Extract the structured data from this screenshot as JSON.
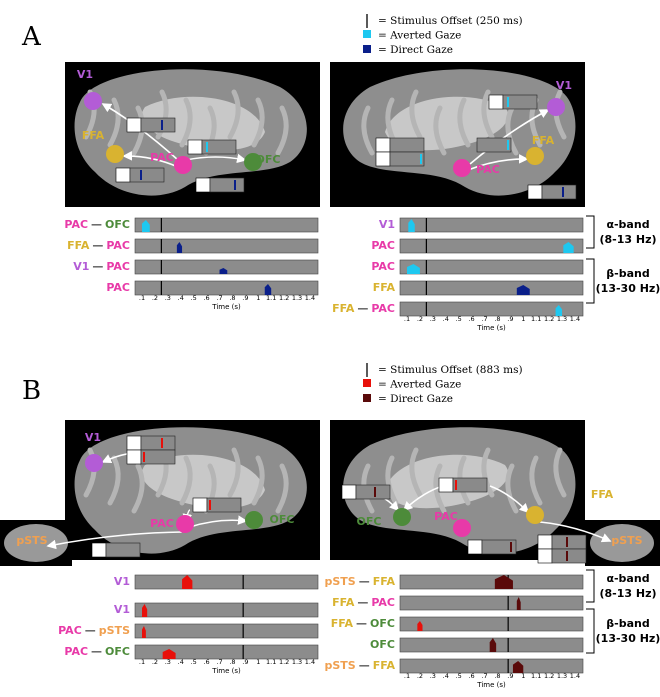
{
  "panels": [
    {
      "label": "A",
      "legend": [
        "= Stimulus Offset (250 ms)",
        "= Averted Gaze",
        "= Direct Gaze"
      ],
      "brains": [
        {
          "regions": [
            "V1",
            "FFA",
            "PAC",
            "OFC"
          ],
          "insets": [
            "β",
            "α",
            "α",
            "β"
          ]
        },
        {
          "regions": [
            "V1",
            "PAC",
            "FFA"
          ],
          "insets": [
            "α",
            "β",
            "α",
            "β"
          ]
        }
      ],
      "rows": [
        [
          [
            "PAC",
            "—",
            "OFC"
          ],
          [
            "FFA",
            "—",
            "PAC"
          ],
          [
            "V1",
            "—",
            "PAC"
          ],
          [
            "PAC"
          ]
        ],
        [
          [
            "V1"
          ],
          [
            "PAC"
          ],
          [
            "PAC"
          ],
          [
            "FFA"
          ],
          [
            "FFA",
            "—",
            "PAC"
          ]
        ]
      ],
      "ticks": [
        ".1",
        ".2",
        ".3",
        ".4",
        ".5",
        ".6",
        ".7",
        ".8",
        ".9",
        "1",
        "1.1",
        "1.2",
        "1.3",
        "1.4"
      ],
      "time_label": "Time (s)",
      "bands": [
        [
          "α-band",
          "(8-13 Hz)"
        ],
        [
          "β-band",
          "(13-30 Hz)"
        ]
      ]
    },
    {
      "label": "B",
      "legend": [
        "= Stimulus Offset (883 ms)",
        "= Averted Gaze",
        "= Direct Gaze"
      ],
      "brains": [
        {
          "regions": [
            "V1",
            "PAC",
            "OFC",
            "pSTS"
          ],
          "insets": [
            "α",
            "β",
            "β",
            "β"
          ]
        },
        {
          "regions": [
            "OFC",
            "PAC",
            "FFA",
            "pSTS"
          ],
          "insets": [
            "β",
            "β",
            "α",
            "α",
            "β"
          ]
        }
      ],
      "rows": [
        [
          [
            "V1"
          ],
          [
            "V1"
          ],
          [
            "PAC",
            "—",
            "pSTS"
          ],
          [
            "PAC",
            "—",
            "OFC"
          ]
        ],
        [
          [
            "pSTS",
            "—",
            "FFA"
          ],
          [
            "FFA",
            "—",
            "PAC"
          ],
          [
            "FFA",
            "—",
            "OFC"
          ],
          [
            "OFC"
          ],
          [
            "pSTS",
            "—",
            "FFA"
          ]
        ]
      ],
      "ticks": [
        ".1",
        ".2",
        ".3",
        ".4",
        ".5",
        ".6",
        ".7",
        ".8",
        ".9",
        "1",
        "1.1",
        "1.2",
        "1.3",
        "1.4"
      ],
      "time_label": "Time (s)",
      "bands": [
        [
          "α-band",
          "(8-13 Hz)"
        ],
        [
          "β-band",
          "(13-30 Hz)"
        ]
      ]
    }
  ]
}
